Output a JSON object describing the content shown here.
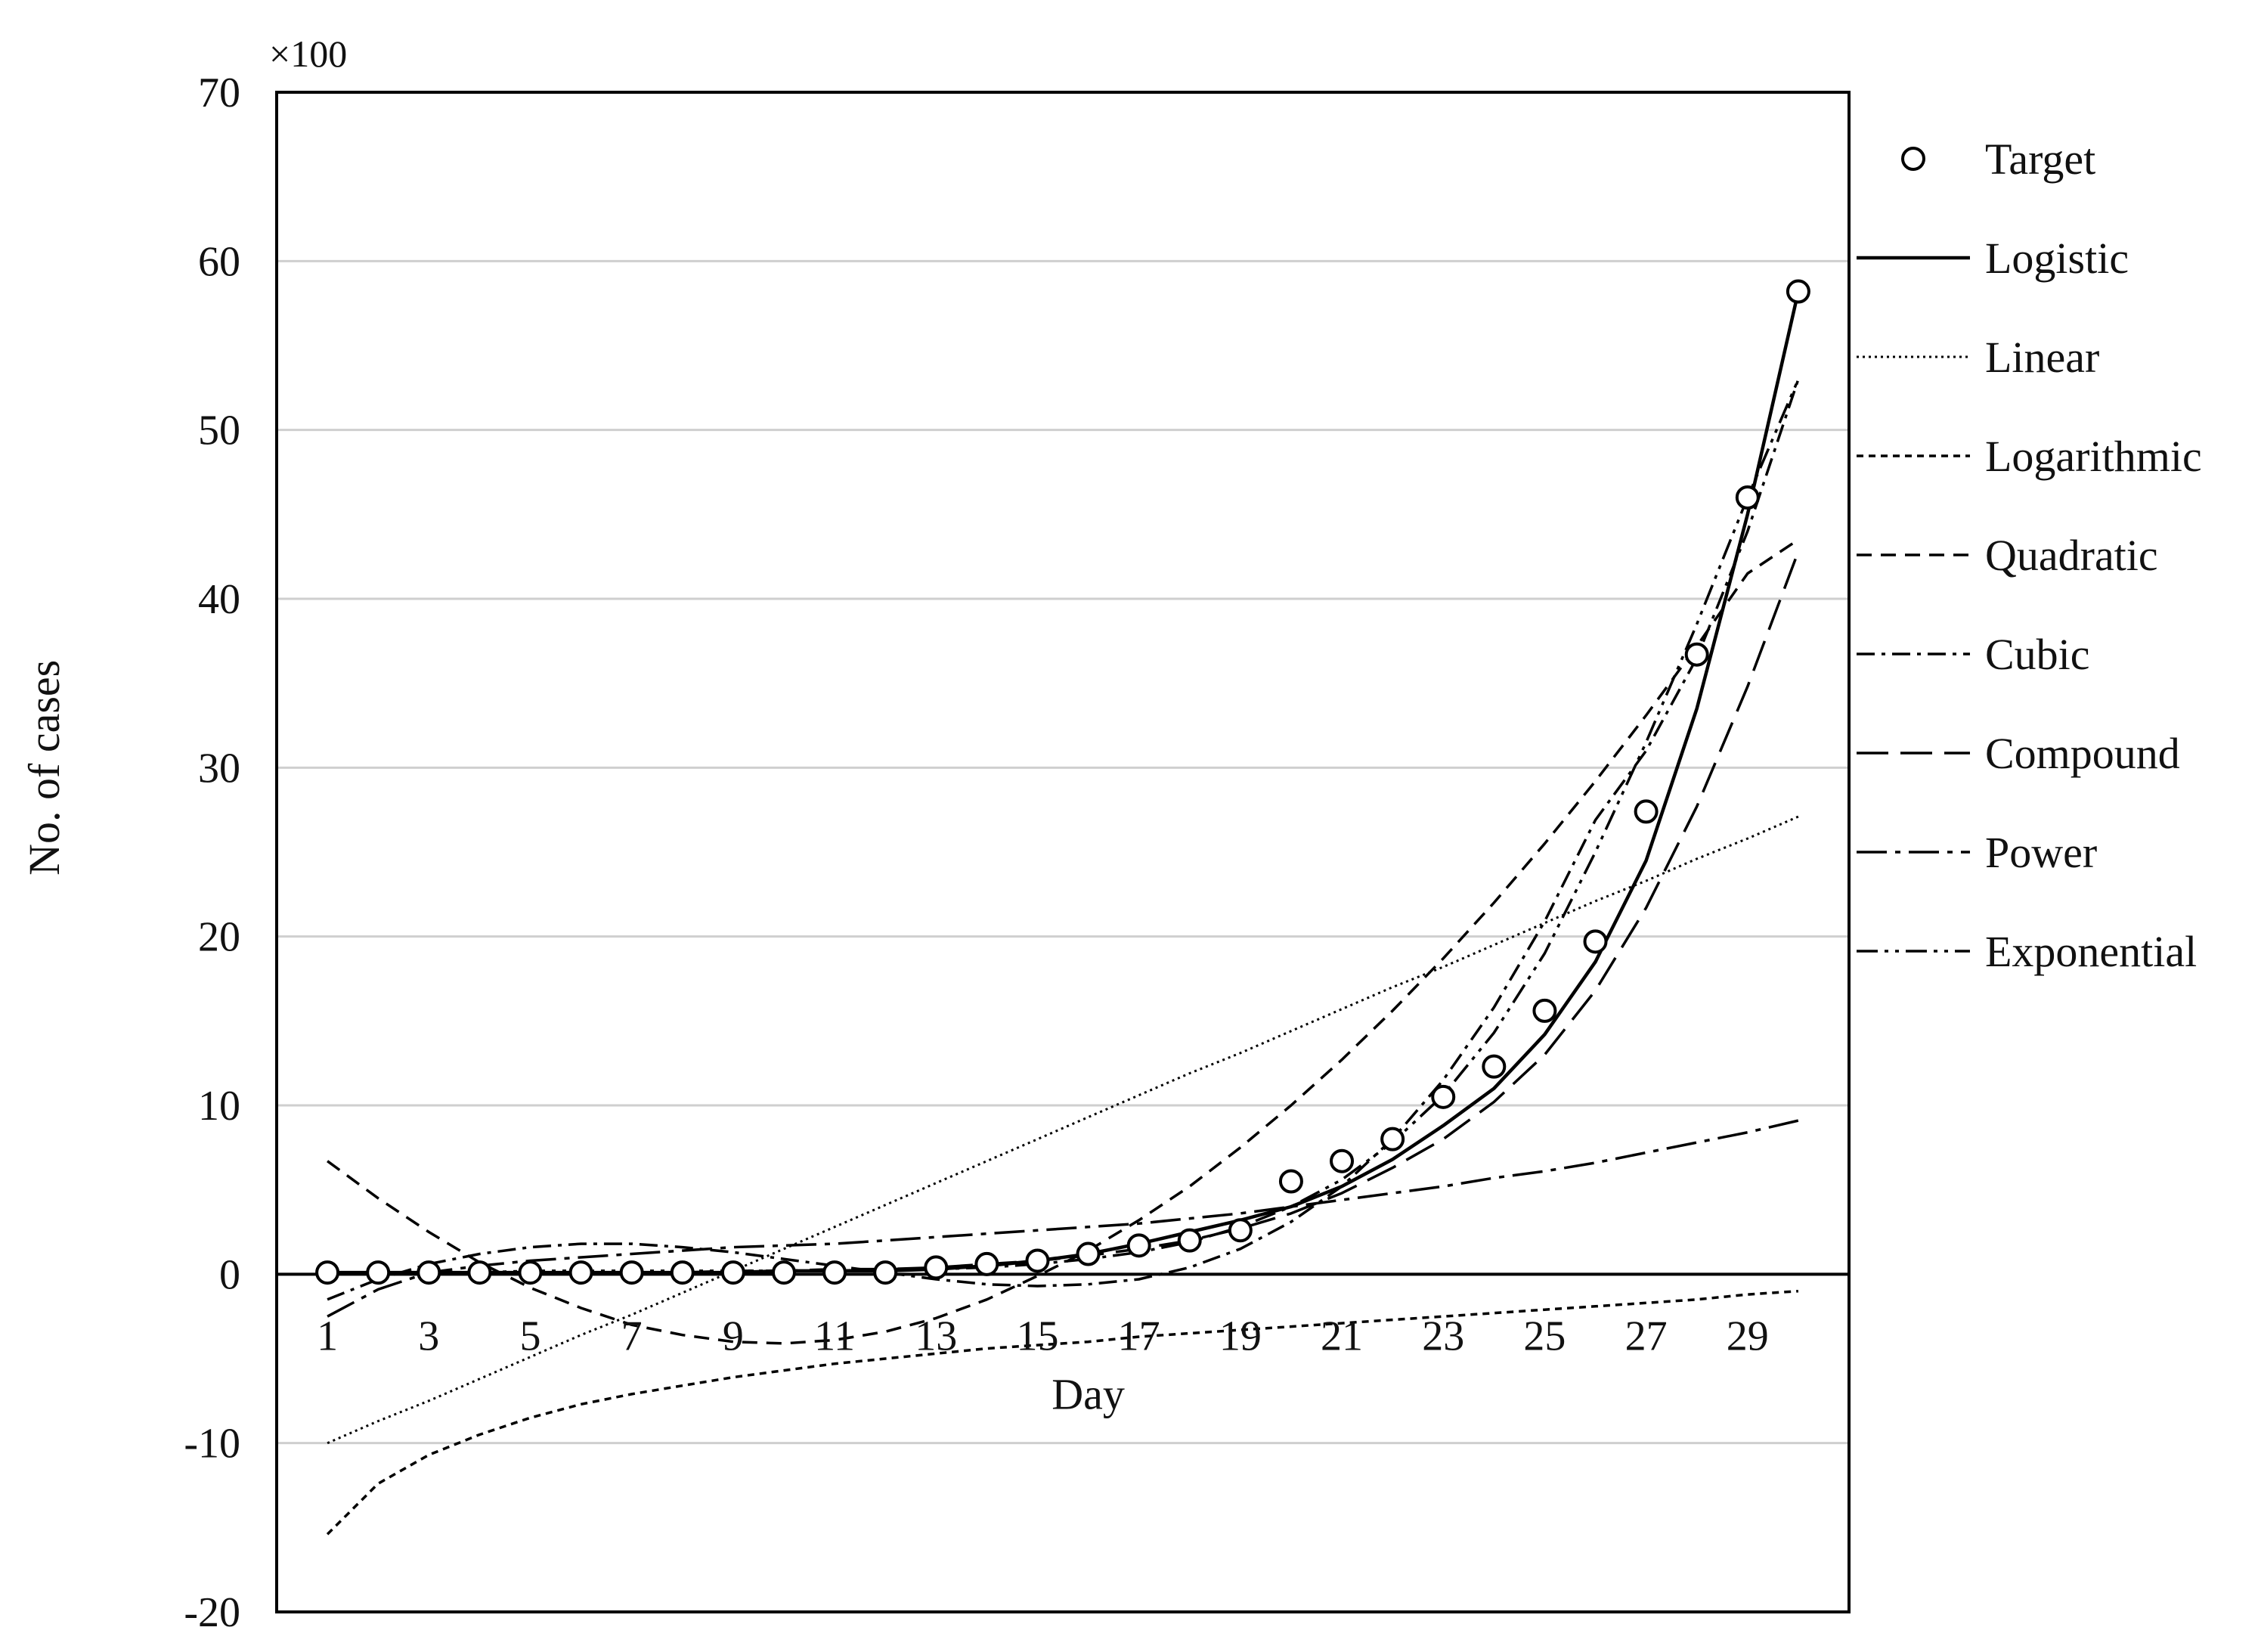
{
  "chart_data": {
    "type": "line",
    "scale_label": "×100",
    "xlabel": "Day",
    "ylabel": "No. of cases",
    "ylim": [
      -20,
      70
    ],
    "xlim": [
      0.0,
      31.0
    ],
    "yticks": [
      -20,
      -10,
      0,
      10,
      20,
      30,
      40,
      50,
      60,
      70
    ],
    "xticks": [
      1,
      3,
      5,
      7,
      9,
      11,
      13,
      15,
      17,
      19,
      21,
      23,
      25,
      27,
      29
    ],
    "grid": "horizontal",
    "legend_position": "right",
    "target": {
      "name": "Target",
      "x": [
        1,
        2,
        3,
        4,
        5,
        6,
        7,
        8,
        9,
        10,
        11,
        12,
        13,
        14,
        15,
        16,
        17,
        18,
        19,
        20,
        21,
        22,
        23,
        24,
        25,
        26,
        27,
        28,
        29,
        30
      ],
      "y": [
        0.1,
        0.1,
        0.1,
        0.1,
        0.1,
        0.1,
        0.1,
        0.1,
        0.1,
        0.1,
        0.1,
        0.1,
        0.4,
        0.6,
        0.8,
        1.2,
        1.7,
        2.0,
        2.6,
        5.5,
        6.7,
        8.0,
        10.5,
        12.3,
        15.6,
        19.7,
        27.4,
        36.7,
        46.0,
        58.2
      ]
    },
    "series": [
      {
        "name": "Logistic",
        "style": "solid",
        "y": [
          0.1,
          0.1,
          0.1,
          0.1,
          0.1,
          0.1,
          0.1,
          0.1,
          0.1,
          0.2,
          0.2,
          0.2,
          0.3,
          0.5,
          0.8,
          1.2,
          1.8,
          2.5,
          3.2,
          4.0,
          5.2,
          6.8,
          8.8,
          11.0,
          14.2,
          18.5,
          24.5,
          33.5,
          45.0,
          58.2
        ]
      },
      {
        "name": "Linear",
        "style": "dotted",
        "y": [
          -10.0,
          -8.7,
          -7.5,
          -6.2,
          -4.9,
          -3.6,
          -2.4,
          -1.1,
          0.2,
          1.5,
          2.8,
          4.1,
          5.4,
          6.7,
          8.0,
          9.3,
          10.6,
          11.9,
          13.1,
          14.4,
          15.7,
          17.0,
          18.2,
          19.5,
          20.8,
          22.1,
          23.3,
          24.6,
          25.8,
          27.1
        ]
      },
      {
        "name": "Logarithmic",
        "style": "short-dash",
        "y": [
          -15.4,
          -12.4,
          -10.7,
          -9.5,
          -8.5,
          -7.7,
          -7.1,
          -6.6,
          -6.1,
          -5.7,
          -5.3,
          -5.0,
          -4.7,
          -4.4,
          -4.2,
          -4.0,
          -3.7,
          -3.5,
          -3.3,
          -3.1,
          -2.9,
          -2.7,
          -2.5,
          -2.3,
          -2.1,
          -1.9,
          -1.7,
          -1.5,
          -1.2,
          -1.0
        ]
      },
      {
        "name": "Quadratic",
        "style": "dash",
        "y": [
          6.7,
          4.5,
          2.5,
          0.7,
          -0.8,
          -2.0,
          -3.0,
          -3.6,
          -4.0,
          -4.1,
          -3.9,
          -3.4,
          -2.6,
          -1.5,
          -0.1,
          1.4,
          3.2,
          5.2,
          7.5,
          10.0,
          12.7,
          15.6,
          18.7,
          22.0,
          25.5,
          29.2,
          33.1,
          37.2,
          41.5,
          43.5
        ]
      },
      {
        "name": "Cubic",
        "style": "dash-dot",
        "y": [
          -1.5,
          -0.3,
          0.6,
          1.2,
          1.6,
          1.8,
          1.8,
          1.6,
          1.3,
          0.9,
          0.5,
          0.1,
          -0.3,
          -0.6,
          -0.7,
          -0.6,
          -0.3,
          0.4,
          1.5,
          3.1,
          5.2,
          8.0,
          11.5,
          15.8,
          20.9,
          26.9,
          31.0,
          36.5,
          44.0,
          53.0
        ]
      },
      {
        "name": "Compound",
        "style": "long-dash",
        "y": [
          0.1,
          0.1,
          0.1,
          0.1,
          0.1,
          0.1,
          0.1,
          0.1,
          0.2,
          0.2,
          0.3,
          0.3,
          0.4,
          0.6,
          0.8,
          1.1,
          1.5,
          2.0,
          2.7,
          3.6,
          4.8,
          6.3,
          8.0,
          10.2,
          13.0,
          16.8,
          21.7,
          27.7,
          34.8,
          42.8
        ]
      },
      {
        "name": "Power",
        "style": "long-dash-dot",
        "y": [
          -2.5,
          -0.9,
          0.1,
          0.5,
          0.8,
          1.0,
          1.2,
          1.4,
          1.6,
          1.7,
          1.8,
          2.0,
          2.2,
          2.4,
          2.6,
          2.8,
          3.0,
          3.3,
          3.6,
          4.0,
          4.4,
          4.8,
          5.2,
          5.7,
          6.1,
          6.6,
          7.2,
          7.8,
          8.4,
          9.1
        ]
      },
      {
        "name": "Exponential",
        "style": "dash-dot-dot",
        "y": [
          0.0,
          0.1,
          0.1,
          0.1,
          0.2,
          0.2,
          0.2,
          0.2,
          0.2,
          0.2,
          0.2,
          0.3,
          0.3,
          0.4,
          0.6,
          0.9,
          1.3,
          1.9,
          2.8,
          4.0,
          5.6,
          7.8,
          10.6,
          14.3,
          19.0,
          25.0,
          31.5,
          38.5,
          46.0,
          53.0
        ]
      }
    ]
  }
}
